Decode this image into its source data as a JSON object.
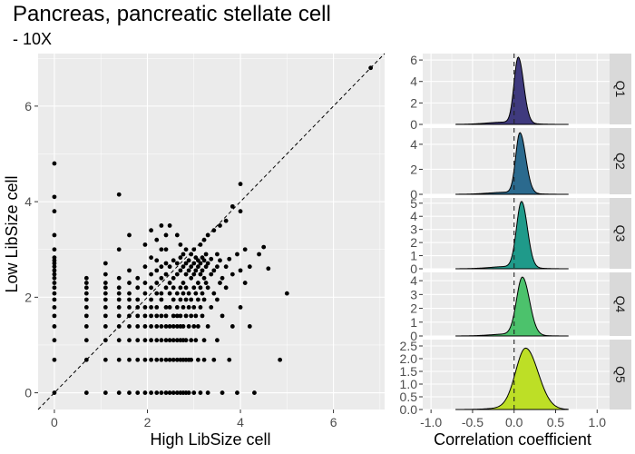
{
  "title": "Pancreas, pancreatic stellate cell",
  "subtitle": "- 10X",
  "colors": {
    "panel_bg": "#ebebeb",
    "grid_major": "#ffffff",
    "strip_bg": "#d9d9d9",
    "Q1": "#3f3a7e",
    "Q2": "#2b6a8e",
    "Q3": "#1f9a8a",
    "Q4": "#4cc26c",
    "Q5": "#bddf26"
  },
  "chart_data": [
    {
      "type": "scatter",
      "xlabel": "High LibSize cell",
      "ylabel": "Low LibSize cell",
      "xlim": [
        -0.35,
        7.1
      ],
      "ylim": [
        -0.35,
        7.1
      ],
      "xticks": [
        "0",
        "2",
        "4",
        "6"
      ],
      "yticks": [
        "0",
        "2",
        "4",
        "6"
      ],
      "reference_line": "identity (y = x), dashed",
      "grid": true,
      "points": [
        [
          0,
          0
        ],
        [
          0,
          0.69
        ],
        [
          0,
          1.1
        ],
        [
          0,
          1.39
        ],
        [
          0,
          1.61
        ],
        [
          0,
          1.79
        ],
        [
          0,
          1.95
        ],
        [
          0,
          2.08
        ],
        [
          0,
          2.2
        ],
        [
          0,
          2.3
        ],
        [
          0,
          2.4
        ],
        [
          0,
          2.48
        ],
        [
          0,
          2.56
        ],
        [
          0,
          2.64
        ],
        [
          0,
          2.71
        ],
        [
          0,
          2.77
        ],
        [
          0,
          2.83
        ],
        [
          0,
          3.0
        ],
        [
          0,
          3.3
        ],
        [
          0,
          3.8
        ],
        [
          0,
          4.1
        ],
        [
          0,
          4.8
        ],
        [
          0.69,
          0
        ],
        [
          0.69,
          0.69
        ],
        [
          0.69,
          1.1
        ],
        [
          0.69,
          1.39
        ],
        [
          0.69,
          1.61
        ],
        [
          0.69,
          1.79
        ],
        [
          0.69,
          1.95
        ],
        [
          0.69,
          2.08
        ],
        [
          0.69,
          2.2
        ],
        [
          0.69,
          2.3
        ],
        [
          0.69,
          2.4
        ],
        [
          1.1,
          0
        ],
        [
          1.1,
          0.69
        ],
        [
          1.1,
          1.1
        ],
        [
          1.1,
          1.39
        ],
        [
          1.1,
          1.61
        ],
        [
          1.1,
          1.79
        ],
        [
          1.1,
          1.95
        ],
        [
          1.1,
          2.08
        ],
        [
          1.1,
          2.2
        ],
        [
          1.1,
          2.3
        ],
        [
          1.1,
          2.48
        ],
        [
          1.1,
          2.71
        ],
        [
          1.39,
          0
        ],
        [
          1.39,
          0.69
        ],
        [
          1.39,
          1.1
        ],
        [
          1.39,
          1.39
        ],
        [
          1.39,
          1.61
        ],
        [
          1.39,
          1.79
        ],
        [
          1.39,
          1.95
        ],
        [
          1.39,
          2.08
        ],
        [
          1.39,
          2.2
        ],
        [
          1.39,
          2.4
        ],
        [
          1.39,
          3.0
        ],
        [
          1.39,
          4.15
        ],
        [
          1.61,
          0
        ],
        [
          1.61,
          0.69
        ],
        [
          1.61,
          1.1
        ],
        [
          1.61,
          1.39
        ],
        [
          1.61,
          1.61
        ],
        [
          1.61,
          1.79
        ],
        [
          1.61,
          1.95
        ],
        [
          1.61,
          2.08
        ],
        [
          1.61,
          2.3
        ],
        [
          1.61,
          2.56
        ],
        [
          1.61,
          3.3
        ],
        [
          1.79,
          0
        ],
        [
          1.79,
          0.69
        ],
        [
          1.79,
          1.1
        ],
        [
          1.79,
          1.39
        ],
        [
          1.79,
          1.61
        ],
        [
          1.79,
          1.79
        ],
        [
          1.79,
          1.95
        ],
        [
          1.79,
          2.2
        ],
        [
          1.79,
          2.4
        ],
        [
          1.95,
          0
        ],
        [
          1.95,
          0.69
        ],
        [
          1.95,
          1.1
        ],
        [
          1.95,
          1.39
        ],
        [
          1.95,
          1.61
        ],
        [
          1.95,
          1.79
        ],
        [
          1.95,
          2.08
        ],
        [
          1.95,
          2.3
        ],
        [
          1.95,
          2.64
        ],
        [
          1.95,
          3.1
        ],
        [
          2.08,
          0
        ],
        [
          2.08,
          0.69
        ],
        [
          2.08,
          1.1
        ],
        [
          2.08,
          1.39
        ],
        [
          2.08,
          1.61
        ],
        [
          2.08,
          1.79
        ],
        [
          2.08,
          1.95
        ],
        [
          2.08,
          2.2
        ],
        [
          2.08,
          2.48
        ],
        [
          2.08,
          2.83
        ],
        [
          2.08,
          3.4
        ],
        [
          2.2,
          0
        ],
        [
          2.2,
          0.69
        ],
        [
          2.2,
          1.1
        ],
        [
          2.2,
          1.39
        ],
        [
          2.2,
          1.61
        ],
        [
          2.2,
          1.79
        ],
        [
          2.2,
          2.08
        ],
        [
          2.2,
          2.3
        ],
        [
          2.2,
          2.56
        ],
        [
          2.2,
          2.77
        ],
        [
          2.2,
          3.2
        ],
        [
          2.3,
          0
        ],
        [
          2.3,
          0.69
        ],
        [
          2.3,
          1.1
        ],
        [
          2.3,
          1.39
        ],
        [
          2.3,
          1.61
        ],
        [
          2.3,
          1.95
        ],
        [
          2.3,
          2.08
        ],
        [
          2.3,
          2.4
        ],
        [
          2.3,
          2.64
        ],
        [
          2.3,
          3.0
        ],
        [
          2.3,
          3.5
        ],
        [
          2.4,
          0
        ],
        [
          2.4,
          0.69
        ],
        [
          2.4,
          1.1
        ],
        [
          2.4,
          1.39
        ],
        [
          2.4,
          1.61
        ],
        [
          2.4,
          1.79
        ],
        [
          2.4,
          2.2
        ],
        [
          2.4,
          2.48
        ],
        [
          2.4,
          2.71
        ],
        [
          2.4,
          3.0
        ],
        [
          2.4,
          3.3
        ],
        [
          2.48,
          0
        ],
        [
          2.48,
          0.69
        ],
        [
          2.48,
          1.1
        ],
        [
          2.48,
          1.39
        ],
        [
          2.48,
          1.79
        ],
        [
          2.48,
          2.08
        ],
        [
          2.48,
          2.3
        ],
        [
          2.48,
          2.64
        ],
        [
          2.48,
          3.5
        ],
        [
          2.56,
          0
        ],
        [
          2.56,
          0.69
        ],
        [
          2.56,
          1.1
        ],
        [
          2.56,
          1.39
        ],
        [
          2.56,
          1.61
        ],
        [
          2.56,
          1.95
        ],
        [
          2.56,
          2.2
        ],
        [
          2.56,
          2.4
        ],
        [
          2.56,
          2.77
        ],
        [
          2.64,
          0
        ],
        [
          2.64,
          0.69
        ],
        [
          2.64,
          1.1
        ],
        [
          2.64,
          1.39
        ],
        [
          2.64,
          1.61
        ],
        [
          2.64,
          1.79
        ],
        [
          2.64,
          2.08
        ],
        [
          2.64,
          2.48
        ],
        [
          2.64,
          2.71
        ],
        [
          2.64,
          3.3
        ],
        [
          2.71,
          0
        ],
        [
          2.71,
          0.69
        ],
        [
          2.71,
          1.1
        ],
        [
          2.71,
          1.39
        ],
        [
          2.71,
          1.61
        ],
        [
          2.71,
          1.95
        ],
        [
          2.71,
          2.2
        ],
        [
          2.71,
          2.56
        ],
        [
          2.71,
          2.83
        ],
        [
          2.71,
          3.1
        ],
        [
          2.77,
          0
        ],
        [
          2.77,
          0.69
        ],
        [
          2.77,
          1.1
        ],
        [
          2.77,
          1.39
        ],
        [
          2.77,
          1.79
        ],
        [
          2.77,
          2.08
        ],
        [
          2.77,
          2.3
        ],
        [
          2.77,
          2.64
        ],
        [
          2.77,
          2.9
        ],
        [
          2.83,
          0
        ],
        [
          2.83,
          0.69
        ],
        [
          2.83,
          1.1
        ],
        [
          2.83,
          1.61
        ],
        [
          2.83,
          1.95
        ],
        [
          2.83,
          2.2
        ],
        [
          2.83,
          2.48
        ],
        [
          2.83,
          2.71
        ],
        [
          2.83,
          3.0
        ],
        [
          2.89,
          0
        ],
        [
          2.89,
          0.69
        ],
        [
          2.89,
          1.39
        ],
        [
          2.89,
          1.79
        ],
        [
          2.89,
          2.08
        ],
        [
          2.89,
          2.56
        ],
        [
          2.89,
          2.77
        ],
        [
          2.94,
          0.69
        ],
        [
          2.94,
          1.1
        ],
        [
          2.94,
          1.61
        ],
        [
          2.94,
          1.95
        ],
        [
          2.94,
          2.4
        ],
        [
          2.94,
          2.64
        ],
        [
          2.94,
          2.9
        ],
        [
          3.0,
          0
        ],
        [
          3.0,
          1.39
        ],
        [
          3.0,
          1.79
        ],
        [
          3.0,
          2.2
        ],
        [
          3.0,
          2.48
        ],
        [
          3.0,
          2.71
        ],
        [
          3.0,
          3.0
        ],
        [
          3.04,
          1.1
        ],
        [
          3.04,
          1.61
        ],
        [
          3.04,
          2.08
        ],
        [
          3.04,
          2.56
        ],
        [
          3.04,
          2.83
        ],
        [
          3.09,
          0.69
        ],
        [
          3.09,
          1.39
        ],
        [
          3.09,
          1.95
        ],
        [
          3.09,
          2.3
        ],
        [
          3.09,
          2.64
        ],
        [
          3.09,
          2.77
        ],
        [
          3.14,
          0
        ],
        [
          3.14,
          1.79
        ],
        [
          3.14,
          2.2
        ],
        [
          3.14,
          2.48
        ],
        [
          3.14,
          2.71
        ],
        [
          3.14,
          3.1
        ],
        [
          3.18,
          1.61
        ],
        [
          3.18,
          2.08
        ],
        [
          3.18,
          2.56
        ],
        [
          3.18,
          2.83
        ],
        [
          3.22,
          0.69
        ],
        [
          3.22,
          1.1
        ],
        [
          3.22,
          1.95
        ],
        [
          3.22,
          2.4
        ],
        [
          3.22,
          2.77
        ],
        [
          3.22,
          3.2
        ],
        [
          3.26,
          2.3
        ],
        [
          3.26,
          2.64
        ],
        [
          3.26,
          2.9
        ],
        [
          3.3,
          0
        ],
        [
          3.3,
          1.39
        ],
        [
          3.3,
          2.2
        ],
        [
          3.3,
          2.71
        ],
        [
          3.3,
          3.3
        ],
        [
          3.37,
          1.79
        ],
        [
          3.37,
          2.48
        ],
        [
          3.37,
          2.8
        ],
        [
          3.43,
          0.69
        ],
        [
          3.43,
          2.08
        ],
        [
          3.43,
          2.56
        ],
        [
          3.43,
          3.4
        ],
        [
          3.5,
          1.1
        ],
        [
          3.5,
          1.95
        ],
        [
          3.5,
          2.64
        ],
        [
          3.5,
          2.9
        ],
        [
          3.56,
          2.3
        ],
        [
          3.56,
          2.77
        ],
        [
          3.56,
          3.5
        ],
        [
          3.61,
          0
        ],
        [
          3.61,
          1.61
        ],
        [
          3.61,
          2.4
        ],
        [
          3.69,
          2.2
        ],
        [
          3.69,
          2.64
        ],
        [
          3.69,
          3.6
        ],
        [
          3.76,
          0.69
        ],
        [
          3.76,
          2.8
        ],
        [
          3.83,
          1.39
        ],
        [
          3.83,
          2.48
        ],
        [
          3.83,
          3.9
        ],
        [
          3.93,
          0
        ],
        [
          3.93,
          2.9
        ],
        [
          4.0,
          1.79
        ],
        [
          4.0,
          2.56
        ],
        [
          4.0,
          3.8
        ],
        [
          4.0,
          4.37
        ],
        [
          4.1,
          2.3
        ],
        [
          4.1,
          3.0
        ],
        [
          4.2,
          1.39
        ],
        [
          4.2,
          2.64
        ],
        [
          4.3,
          0
        ],
        [
          4.4,
          2.9
        ],
        [
          4.5,
          3.05
        ],
        [
          4.6,
          2.6
        ],
        [
          4.85,
          0.69
        ],
        [
          5.0,
          2.08
        ],
        [
          6.8,
          6.8
        ]
      ]
    },
    {
      "type": "area",
      "xlabel": "Correlation coefficient",
      "xlim": [
        -1.1,
        1.15
      ],
      "xticks": [
        "-1.0",
        "-0.5",
        "0.0",
        "0.5",
        "1.0"
      ],
      "vline": 0,
      "grid": true,
      "panels": [
        {
          "name": "Q1",
          "ymax": 6.6,
          "yticks": [
            "0",
            "2",
            "4",
            "6"
          ],
          "density": {
            "peak": 6.1,
            "mu": 0.05,
            "sL": 0.05,
            "sR": 0.065
          }
        },
        {
          "name": "Q2",
          "ymax": 5.3,
          "yticks": [
            "0",
            "2",
            "4"
          ],
          "density": {
            "peak": 4.8,
            "mu": 0.07,
            "sL": 0.05,
            "sR": 0.07
          }
        },
        {
          "name": "Q3",
          "ymax": 5.4,
          "yticks": [
            "0",
            "1",
            "2",
            "3",
            "4",
            "5"
          ],
          "density": {
            "peak": 5.0,
            "mu": 0.09,
            "sL": 0.06,
            "sR": 0.07
          }
        },
        {
          "name": "Q4",
          "ymax": 4.6,
          "yticks": [
            "0",
            "1",
            "2",
            "3",
            "4"
          ],
          "density": {
            "peak": 4.15,
            "mu": 0.1,
            "sL": 0.07,
            "sR": 0.085
          }
        },
        {
          "name": "Q5",
          "ymax": 2.75,
          "yticks": [
            "0.0",
            "0.5",
            "1.0",
            "1.5",
            "2.0",
            "2.5"
          ],
          "density": {
            "peak": 2.35,
            "mu": 0.14,
            "sL": 0.12,
            "sR": 0.15
          }
        }
      ]
    }
  ]
}
